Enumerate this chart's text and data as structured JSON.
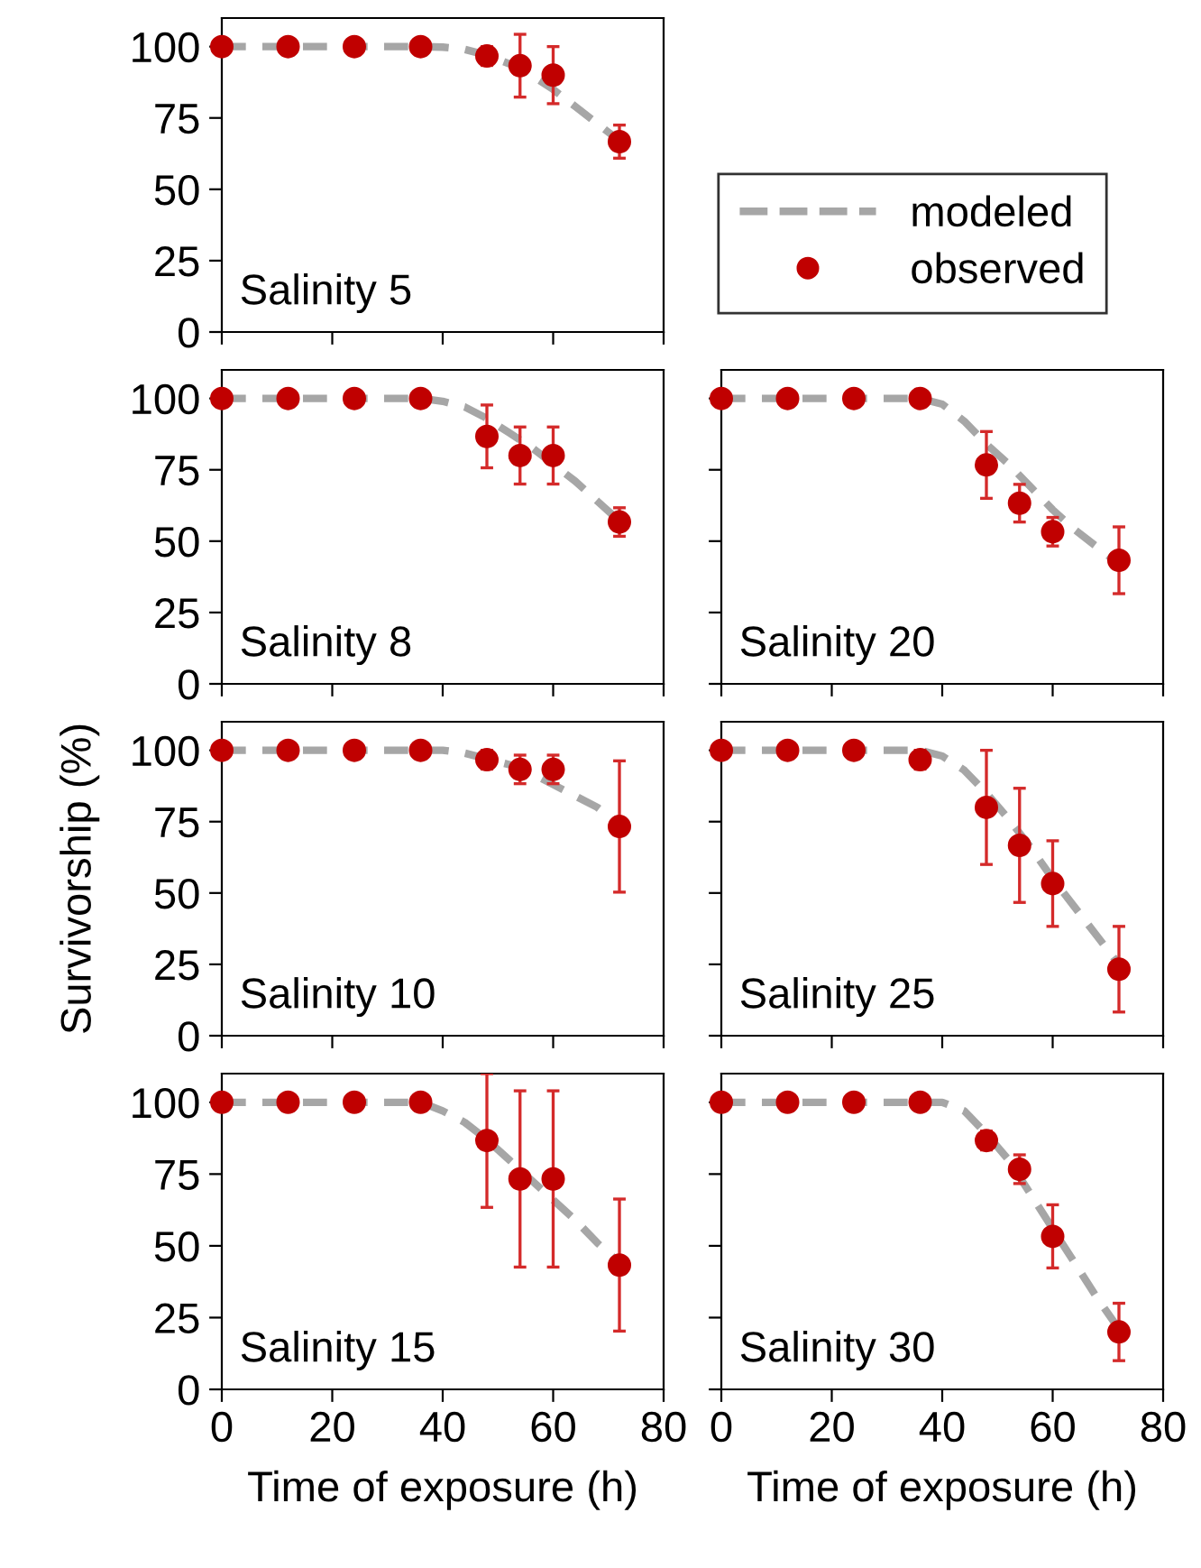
{
  "chart_data": [
    {
      "type": "line",
      "annotations": [
        "Salinity 5"
      ],
      "xlim": [
        0,
        80
      ],
      "ylim": [
        0,
        110
      ],
      "xticks": [
        0,
        20,
        40,
        60,
        80
      ],
      "yticks": [
        0,
        25,
        50,
        75,
        100
      ],
      "tick_labels": "y",
      "grid": false,
      "legend": "right",
      "series": [
        {
          "name": "modeled",
          "line_style": "dashed",
          "marker": "none",
          "color": "#a6a6a6",
          "x": [
            0,
            36,
            40,
            44,
            48,
            52,
            56,
            60,
            64,
            68,
            72
          ],
          "values": [
            100,
            100,
            99.8,
            99,
            97,
            94,
            90,
            85,
            79,
            73,
            67
          ]
        },
        {
          "name": "observed",
          "type": "scatter",
          "marker": "circle",
          "color": "#c00000",
          "x": [
            0,
            12,
            24,
            36,
            48,
            54,
            60,
            72
          ],
          "values": [
            100,
            100,
            100,
            100,
            96.7,
            93.3,
            90,
            66.7
          ],
          "errors": [
            null,
            null,
            null,
            null,
            3.3,
            11,
            10,
            5.8
          ]
        }
      ]
    },
    {
      "type": "line",
      "annotations": [
        "Salinity 8"
      ],
      "xlim": [
        0,
        80
      ],
      "ylim": [
        0,
        110
      ],
      "xticks": [
        0,
        20,
        40,
        60,
        80
      ],
      "yticks": [
        0,
        25,
        50,
        75,
        100
      ],
      "tick_labels": "y",
      "grid": false,
      "series": [
        {
          "line_style": "dashed",
          "marker": "none",
          "color": "#a6a6a6",
          "x": [
            0,
            36,
            40,
            44,
            48,
            52,
            56,
            60,
            64,
            68,
            72
          ],
          "values": [
            100,
            100,
            99,
            97,
            93,
            88,
            83,
            77,
            71,
            64,
            57
          ]
        },
        {
          "type": "scatter",
          "marker": "circle",
          "color": "#c00000",
          "x": [
            0,
            12,
            24,
            36,
            48,
            54,
            60,
            72
          ],
          "values": [
            100,
            100,
            100,
            100,
            86.7,
            80,
            80,
            56.7
          ],
          "errors": [
            null,
            null,
            null,
            null,
            11,
            10,
            10,
            5
          ]
        }
      ]
    },
    {
      "type": "line",
      "annotations": [
        "Salinity 20"
      ],
      "xlim": [
        0,
        80
      ],
      "ylim": [
        0,
        110
      ],
      "xticks": [
        0,
        20,
        40,
        60,
        80
      ],
      "yticks": [
        0,
        25,
        50,
        75,
        100
      ],
      "tick_labels": false,
      "grid": false,
      "series": [
        {
          "line_style": "dashed",
          "marker": "none",
          "color": "#a6a6a6",
          "x": [
            0,
            36,
            40,
            44,
            48,
            52,
            56,
            60,
            64,
            68,
            72
          ],
          "values": [
            100,
            100,
            98,
            92,
            84,
            77,
            69,
            61,
            54,
            48,
            42
          ]
        },
        {
          "type": "scatter",
          "marker": "circle",
          "color": "#c00000",
          "x": [
            0,
            12,
            24,
            36,
            48,
            54,
            60,
            72
          ],
          "values": [
            100,
            100,
            100,
            100,
            76.7,
            63.3,
            53.3,
            43.3
          ],
          "errors": [
            null,
            null,
            null,
            null,
            11.7,
            6.6,
            5,
            11.7
          ]
        }
      ]
    },
    {
      "type": "line",
      "ylabel": "Survivorship (%)",
      "annotations": [
        "Salinity 10"
      ],
      "xlim": [
        0,
        80
      ],
      "ylim": [
        0,
        110
      ],
      "xticks": [
        0,
        20,
        40,
        60,
        80
      ],
      "yticks": [
        0,
        25,
        50,
        75,
        100
      ],
      "tick_labels": "y",
      "grid": false,
      "series": [
        {
          "line_style": "dashed",
          "marker": "none",
          "color": "#a6a6a6",
          "x": [
            0,
            36,
            40,
            44,
            48,
            52,
            56,
            60,
            64,
            68,
            72
          ],
          "values": [
            100,
            100,
            100,
            99,
            97,
            95,
            92,
            88,
            84,
            80,
            74
          ]
        },
        {
          "type": "scatter",
          "marker": "circle",
          "color": "#c00000",
          "x": [
            0,
            12,
            24,
            36,
            48,
            54,
            60,
            72
          ],
          "values": [
            100,
            100,
            100,
            100,
            96.7,
            93.3,
            93.3,
            73.3
          ],
          "errors": [
            null,
            null,
            null,
            null,
            3.3,
            5,
            5,
            23
          ]
        }
      ]
    },
    {
      "type": "line",
      "annotations": [
        "Salinity 25"
      ],
      "xlim": [
        0,
        80
      ],
      "ylim": [
        0,
        110
      ],
      "xticks": [
        0,
        20,
        40,
        60,
        80
      ],
      "yticks": [
        0,
        25,
        50,
        75,
        100
      ],
      "tick_labels": false,
      "grid": false,
      "series": [
        {
          "line_style": "dashed",
          "marker": "none",
          "color": "#a6a6a6",
          "x": [
            0,
            36,
            40,
            44,
            48,
            52,
            56,
            60,
            64,
            68,
            72
          ],
          "values": [
            100,
            100,
            98,
            93,
            85,
            76,
            66,
            55,
            45,
            35,
            25
          ]
        },
        {
          "type": "scatter",
          "marker": "circle",
          "color": "#c00000",
          "x": [
            0,
            12,
            24,
            36,
            48,
            54,
            60,
            72
          ],
          "values": [
            100,
            100,
            100,
            96.7,
            80,
            66.7,
            53.3,
            23.3
          ],
          "errors": [
            null,
            null,
            null,
            3.3,
            20,
            20,
            15,
            15
          ]
        }
      ]
    },
    {
      "type": "line",
      "xlabel": "Time of exposure (h)",
      "annotations": [
        "Salinity 15"
      ],
      "xlim": [
        0,
        80
      ],
      "ylim": [
        0,
        110
      ],
      "xticks": [
        0,
        20,
        40,
        60,
        80
      ],
      "yticks": [
        0,
        25,
        50,
        75,
        100
      ],
      "grid": false,
      "series": [
        {
          "line_style": "dashed",
          "marker": "none",
          "color": "#a6a6a6",
          "x": [
            0,
            36,
            40,
            44,
            48,
            52,
            56,
            60,
            64,
            68,
            72
          ],
          "values": [
            100,
            100,
            97,
            93,
            87,
            80,
            73,
            66,
            59,
            51,
            44
          ]
        },
        {
          "type": "scatter",
          "marker": "circle",
          "color": "#c00000",
          "x": [
            0,
            12,
            24,
            36,
            48,
            54,
            60,
            72
          ],
          "values": [
            100,
            100,
            100,
            100,
            86.7,
            73.3,
            73.3,
            43.3
          ],
          "errors": [
            null,
            null,
            null,
            null,
            23.3,
            30.7,
            30.7,
            23
          ]
        }
      ]
    },
    {
      "type": "line",
      "xlabel": "Time of exposure (h)",
      "annotations": [
        "Salinity 30"
      ],
      "xlim": [
        0,
        80
      ],
      "ylim": [
        0,
        110
      ],
      "xticks": [
        0,
        20,
        40,
        60,
        80
      ],
      "yticks": [
        0,
        25,
        50,
        75,
        100
      ],
      "tick_labels": "x",
      "grid": false,
      "series": [
        {
          "line_style": "dashed",
          "marker": "none",
          "color": "#a6a6a6",
          "x": [
            0,
            36,
            40,
            44,
            48,
            52,
            56,
            60,
            64,
            68,
            72
          ],
          "values": [
            100,
            100,
            100,
            97,
            89,
            80,
            68,
            56,
            44,
            32,
            21
          ]
        },
        {
          "type": "scatter",
          "marker": "circle",
          "color": "#c00000",
          "x": [
            0,
            12,
            24,
            36,
            48,
            54,
            60,
            72
          ],
          "values": [
            100,
            100,
            100,
            100,
            86.7,
            76.7,
            53.3,
            20
          ],
          "errors": [
            null,
            null,
            null,
            null,
            3.3,
            5,
            11,
            10
          ]
        }
      ]
    }
  ]
}
